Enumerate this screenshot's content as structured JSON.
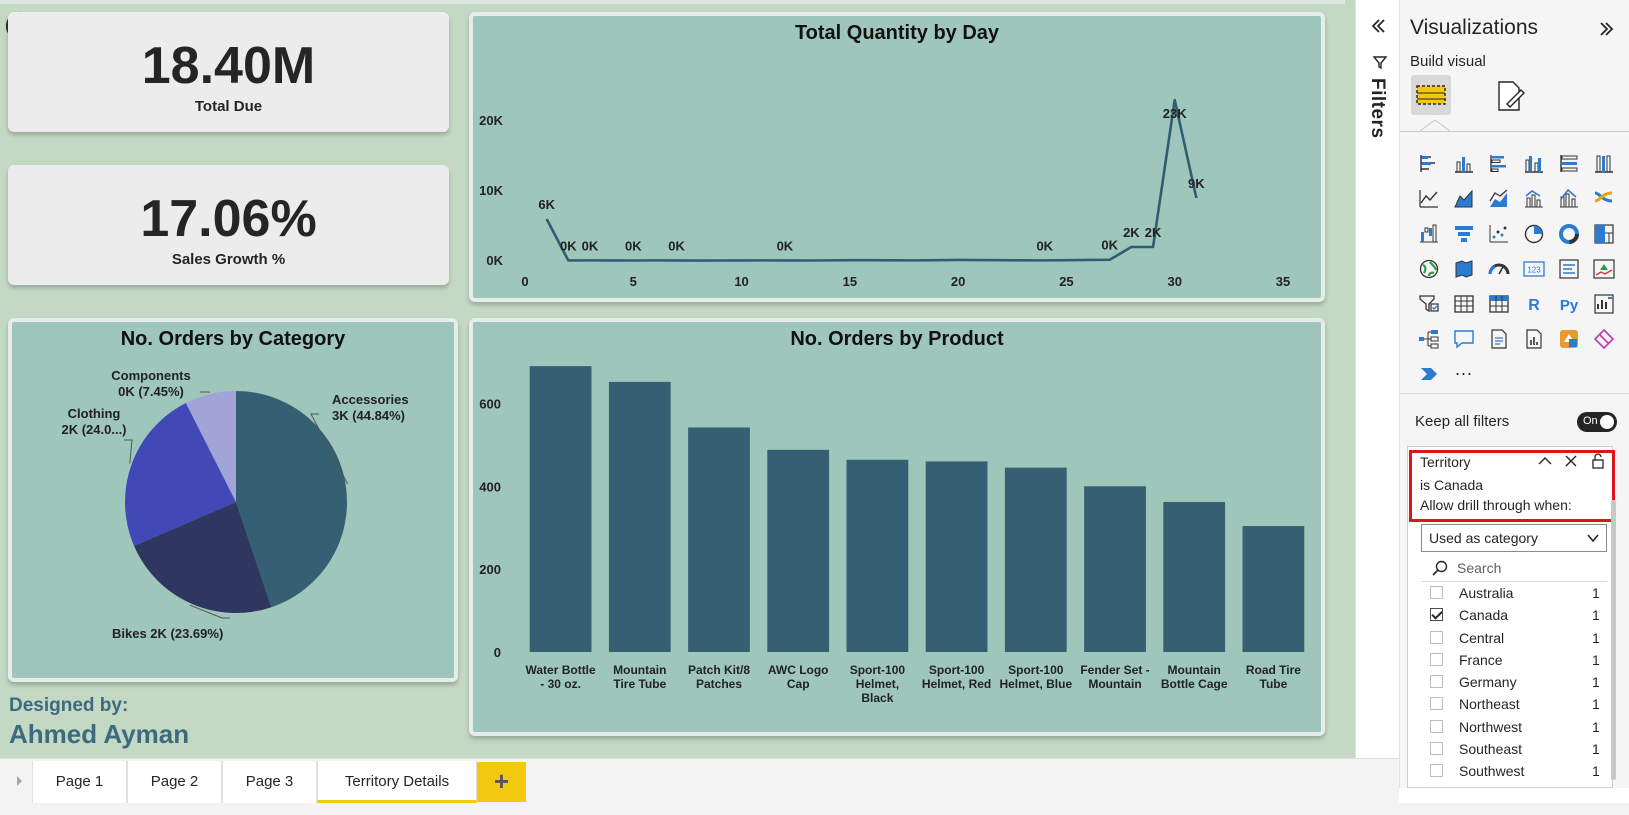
{
  "kpis": {
    "total_due": {
      "value": "18.40M",
      "label": "Total Due"
    },
    "sales_growth": {
      "value": "17.06%",
      "label": "Sales Growth %"
    }
  },
  "designer": {
    "caption": "Designed by:",
    "name": "Ahmed Ayman"
  },
  "charts": {
    "line": {
      "title": "Total Quantity by Day"
    },
    "pie": {
      "title": "No. Orders by Category"
    },
    "bar": {
      "title": "No. Orders by Product"
    }
  },
  "chart_data": [
    {
      "type": "line",
      "title": "Total Quantity by Day",
      "xlabel": "",
      "ylabel": "",
      "xlim": [
        0,
        35
      ],
      "ylim": [
        0,
        25000
      ],
      "x_ticks": [
        "0",
        "5",
        "10",
        "15",
        "20",
        "25",
        "30",
        "35"
      ],
      "y_ticks": [
        "0K",
        "10K",
        "20K"
      ],
      "x": [
        1,
        2,
        3,
        4,
        5,
        6,
        7,
        8,
        9,
        10,
        11,
        12,
        13,
        14,
        15,
        16,
        17,
        18,
        19,
        20,
        21,
        22,
        23,
        24,
        25,
        26,
        27,
        28,
        29,
        30,
        31
      ],
      "values": [
        6000,
        80,
        90,
        80,
        70,
        90,
        80,
        60,
        70,
        80,
        90,
        80,
        70,
        90,
        110,
        120,
        100,
        90,
        120,
        150,
        130,
        110,
        100,
        90,
        120,
        150,
        180,
        2000,
        2000,
        23000,
        9000
      ],
      "data_labels": [
        {
          "x": 1,
          "text": "6K"
        },
        {
          "x": 2,
          "text": "0K"
        },
        {
          "x": 3,
          "text": "0K"
        },
        {
          "x": 5,
          "text": "0K"
        },
        {
          "x": 7,
          "text": "0K"
        },
        {
          "x": 12,
          "text": "0K"
        },
        {
          "x": 24,
          "text": "0K"
        },
        {
          "x": 27,
          "text": "0K"
        },
        {
          "x": 28,
          "text": "2K"
        },
        {
          "x": 29,
          "text": "2K"
        },
        {
          "x": 30,
          "text": "23K"
        },
        {
          "x": 31,
          "text": "9K"
        }
      ],
      "color": "#305d74"
    },
    {
      "type": "pie",
      "title": "No. Orders by Category",
      "slices": [
        {
          "name": "Accessories",
          "value": 44.84,
          "label_line1": "Accessories",
          "label_line2": "3K (44.84%)",
          "color": "#355f73"
        },
        {
          "name": "Bikes",
          "value": 23.69,
          "label_line1": "Bikes 2K (23.69%)",
          "label_line2": "",
          "color": "#2f3660"
        },
        {
          "name": "Clothing",
          "value": 24.02,
          "label_line1": "Clothing",
          "label_line2": "2K (24.0...)",
          "color": "#4248b5"
        },
        {
          "name": "Components",
          "value": 7.45,
          "label_line1": "Components",
          "label_line2": "0K (7.45%)",
          "color": "#a2a4d8"
        }
      ]
    },
    {
      "type": "bar",
      "title": "No. Orders by Product",
      "xlabel": "",
      "ylabel": "",
      "ylim": [
        0,
        700
      ],
      "y_ticks": [
        "0",
        "200",
        "400",
        "600"
      ],
      "categories": [
        [
          "Water Bottle",
          "- 30 oz."
        ],
        [
          "Mountain",
          "Tire Tube"
        ],
        [
          "Patch Kit/8",
          "Patches"
        ],
        [
          "AWC Logo",
          "Cap"
        ],
        [
          "Sport-100",
          "Helmet,",
          "Black"
        ],
        [
          "Sport-100",
          "Helmet, Red"
        ],
        [
          "Sport-100",
          "Helmet, Blue"
        ],
        [
          "Fender Set -",
          "Mountain"
        ],
        [
          "Mountain",
          "Bottle Cage"
        ],
        [
          "Road Tire",
          "Tube"
        ]
      ],
      "values": [
        690,
        652,
        542,
        488,
        464,
        460,
        445,
        400,
        362,
        304
      ],
      "color": "#355f73"
    }
  ],
  "tabs": [
    "Page 1",
    "Page 2",
    "Page 3",
    "Territory Details"
  ],
  "active_tab": "Territory Details",
  "add_tab_symbol": "+",
  "filters_pane": {
    "label": "Filters"
  },
  "viz_pane": {
    "title": "Visualizations",
    "build_visual": "Build visual",
    "more": "···",
    "keep_all_filters": "Keep all filters",
    "toggle_label": "On",
    "drill_filter": {
      "field": "Territory",
      "condition": "is Canada",
      "allow_text": "Allow drill through when:",
      "dropdown_value": "Used as category",
      "search_placeholder": "Search",
      "items": [
        {
          "name": "Australia",
          "count": "1",
          "checked": false
        },
        {
          "name": "Canada",
          "count": "1",
          "checked": true
        },
        {
          "name": "Central",
          "count": "1",
          "checked": false
        },
        {
          "name": "France",
          "count": "1",
          "checked": false
        },
        {
          "name": "Germany",
          "count": "1",
          "checked": false
        },
        {
          "name": "Northeast",
          "count": "1",
          "checked": false
        },
        {
          "name": "Northwest",
          "count": "1",
          "checked": false
        },
        {
          "name": "Southeast",
          "count": "1",
          "checked": false
        },
        {
          "name": "Southwest",
          "count": "1",
          "checked": false
        }
      ]
    },
    "visual_icons": [
      "stacked-bar-icon",
      "stacked-column-icon",
      "clustered-bar-icon",
      "clustered-column-icon",
      "100-bar-icon",
      "100-column-icon",
      "line-chart-icon",
      "area-chart-icon",
      "stacked-area-icon",
      "line-column-icon",
      "line-clustered-icon",
      "ribbon-chart-icon",
      "waterfall-icon",
      "funnel-icon",
      "scatter-icon",
      "pie-chart-icon",
      "donut-chart-icon",
      "treemap-icon",
      "map-icon",
      "filled-map-icon",
      "gauge-icon",
      "card-icon",
      "multirow-card-icon",
      "kpi-icon",
      "slicer-icon",
      "table-icon",
      "matrix-icon",
      "r-visual-icon",
      "python-visual-icon",
      "key-influencers-icon",
      "decomposition-tree-icon",
      "qa-icon",
      "narrative-icon",
      "paginated-report-icon",
      "power-apps-icon",
      "power-automate-icon",
      "arcgis-icon"
    ]
  }
}
